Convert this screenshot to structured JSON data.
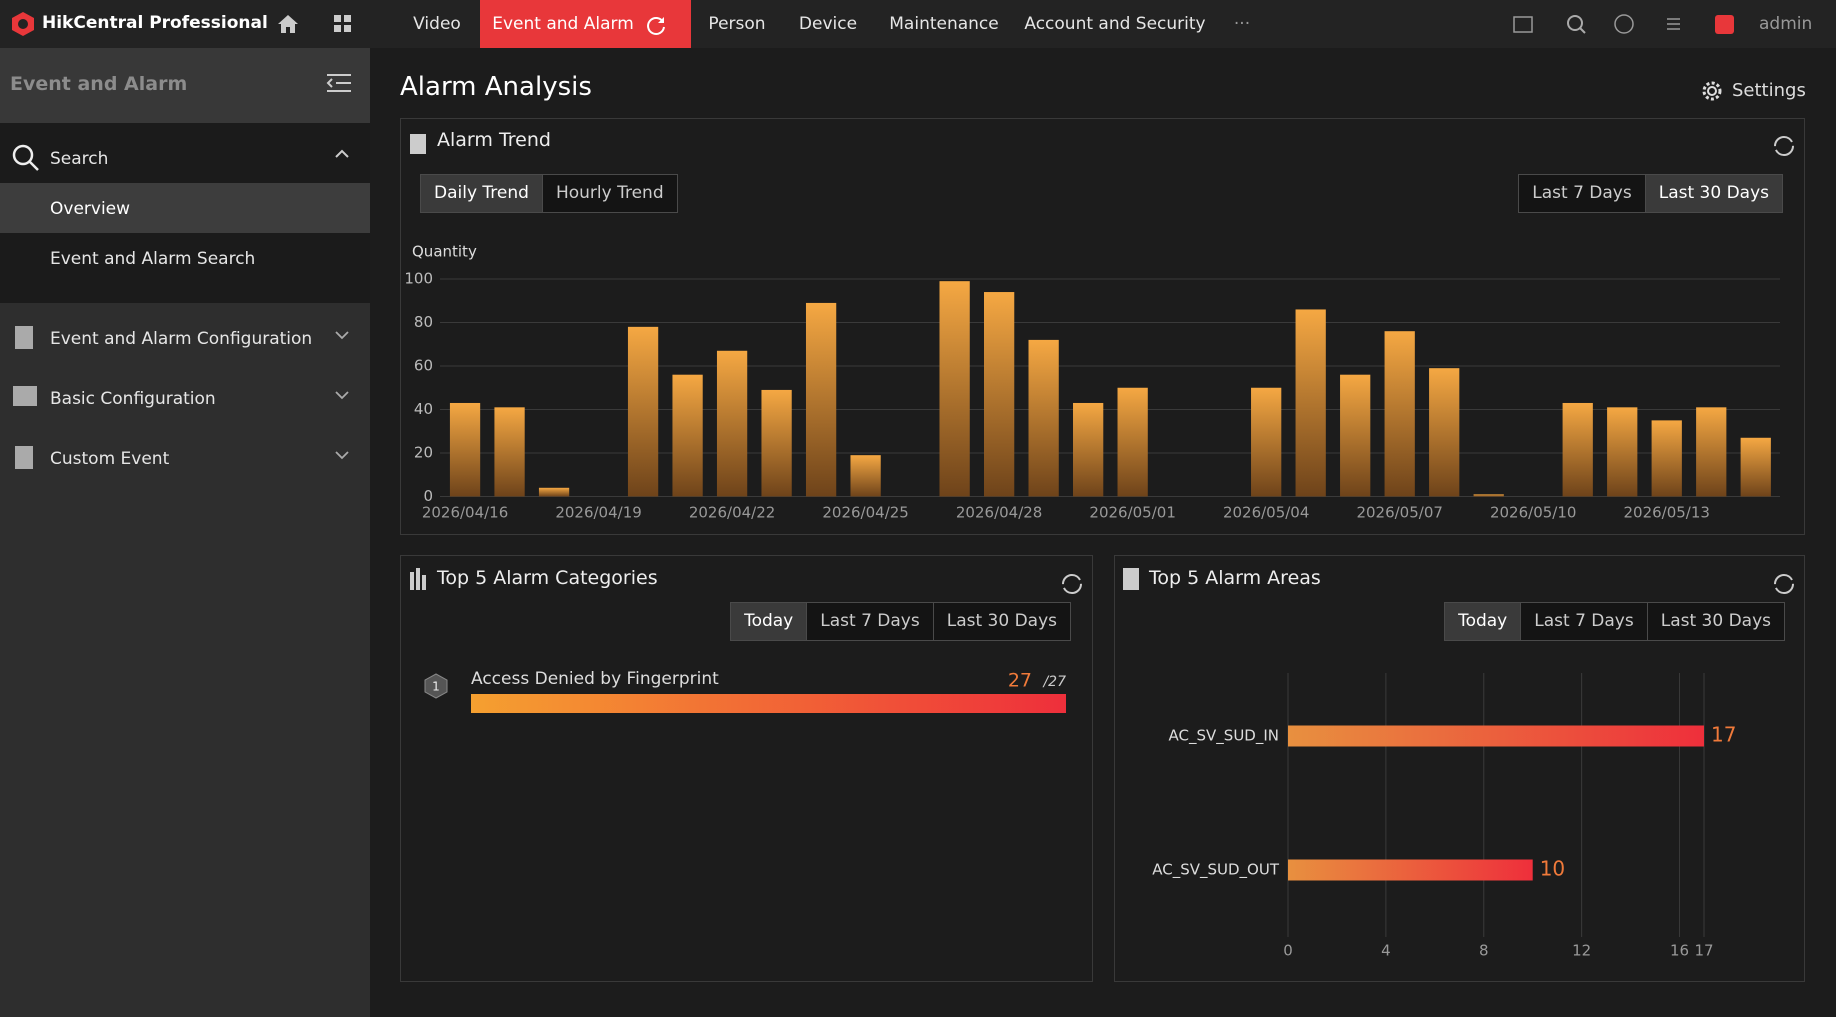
{
  "header": {
    "logo": "HikCentral Professional",
    "nav": [
      "Video",
      "Event and Alarm",
      "Person",
      "Device",
      "Maintenance",
      "Account and Security",
      "···"
    ],
    "user": "admin"
  },
  "sidebar": {
    "title": "Event and Alarm",
    "search": "Search",
    "search_items": [
      "Overview",
      "Event and Alarm Search"
    ],
    "groups": [
      "Event and Alarm Configuration",
      "Basic Configuration",
      "Custom Event"
    ]
  },
  "page": {
    "title": "Alarm Analysis",
    "settings": "Settings"
  },
  "chart_data": [
    {
      "type": "bar",
      "title": "Alarm Trend",
      "tabs_left": [
        "Daily Trend",
        "Hourly Trend"
      ],
      "tabs_right": [
        "Last 7 Days",
        "Last 30 Days"
      ],
      "y_label": "Quantity",
      "categories": [
        "2026/04/16",
        null,
        null,
        "2026/04/19",
        null,
        null,
        "2026/04/22",
        null,
        null,
        "2026/04/25",
        null,
        null,
        "2026/04/28",
        null,
        null,
        "2026/05/01",
        null,
        null,
        "2026/05/04",
        null,
        null,
        "2026/05/07",
        null,
        null,
        "2026/05/10",
        null,
        null,
        "2026/05/13",
        null,
        null
      ],
      "values": [
        43,
        41,
        4,
        0,
        78,
        56,
        67,
        49,
        89,
        19,
        0,
        99,
        94,
        72,
        43,
        50,
        0,
        0,
        50,
        86,
        56,
        76,
        59,
        1,
        0,
        43,
        41,
        35,
        41,
        27
      ],
      "color": "#f0a040",
      "ylim": [
        0,
        100
      ],
      "yticks": [
        0,
        20,
        40,
        60,
        80,
        100
      ],
      "grid": true
    },
    {
      "type": "ranking",
      "title": "Top 5 Alarm Categories",
      "tabs_right": [
        "Today",
        "Last 7 Days",
        "Last 30 Days"
      ],
      "ranks": [
        1
      ],
      "categories": [
        "Access Denied by Fingerprint"
      ],
      "values": [
        27
      ],
      "total": {
        "value": 27,
        "label": "/27"
      },
      "colors": [
        "#f5a030",
        "#ee2f3b"
      ]
    },
    {
      "type": "barh",
      "title": "Top 5 Alarm Areas",
      "tabs_right": [
        "Today",
        "Last 7 Days",
        "Last 30 Days"
      ],
      "categories": [
        "AC_SV_SUD_IN",
        "AC_SV_SUD_OUT"
      ],
      "values": [
        17,
        10
      ],
      "colors": [
        "#e8903f",
        "#ee2f3b"
      ],
      "xlim": [
        0,
        17
      ],
      "xticks": [
        0,
        4,
        8,
        12,
        16,
        17
      ],
      "grid": true
    }
  ]
}
